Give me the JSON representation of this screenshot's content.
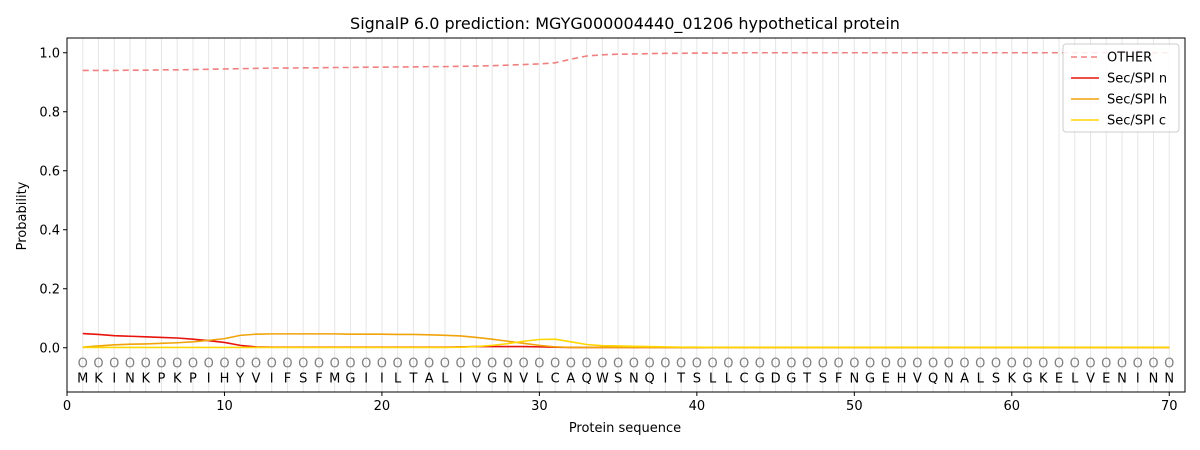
{
  "chart_data": {
    "type": "line",
    "title": "SignalP 6.0 prediction: MGYG000004440_01206 hypothetical protein",
    "xlabel": "Protein sequence",
    "ylabel": "Probability",
    "xlim": [
      0,
      71
    ],
    "ylim": [
      -0.15,
      1.05
    ],
    "xticks": [
      0,
      10,
      20,
      30,
      40,
      50,
      60,
      70
    ],
    "yticks": [
      0.0,
      0.2,
      0.4,
      0.6,
      0.8,
      1.0
    ],
    "ytick_labels": [
      "0.0",
      "0.2",
      "0.4",
      "0.6",
      "0.8",
      "1.0"
    ],
    "grid": "vertical",
    "legend_position": "top-right",
    "sequence": "MKINKPKPIHYVIFSFMGIILTALIVGNVLCAQWSNQITSLLCGDGTSFNGEHVQNALSKGKELVENINN",
    "cleavage_marker": "O",
    "x": [
      1,
      2,
      3,
      4,
      5,
      6,
      7,
      8,
      9,
      10,
      11,
      12,
      13,
      14,
      15,
      16,
      17,
      18,
      19,
      20,
      21,
      22,
      23,
      24,
      25,
      26,
      27,
      28,
      29,
      30,
      31,
      32,
      33,
      34,
      35,
      36,
      37,
      38,
      39,
      40,
      41,
      42,
      43,
      44,
      45,
      46,
      47,
      48,
      49,
      50,
      51,
      52,
      53,
      54,
      55,
      56,
      57,
      58,
      59,
      60,
      61,
      62,
      63,
      64,
      65,
      66,
      67,
      68,
      69,
      70
    ],
    "series": [
      {
        "name": "OTHER",
        "color": "#f08080",
        "dash": true,
        "values": [
          0.94,
          0.94,
          0.94,
          0.941,
          0.941,
          0.942,
          0.942,
          0.943,
          0.944,
          0.945,
          0.946,
          0.947,
          0.948,
          0.948,
          0.949,
          0.949,
          0.95,
          0.95,
          0.951,
          0.951,
          0.952,
          0.952,
          0.953,
          0.953,
          0.954,
          0.955,
          0.956,
          0.958,
          0.96,
          0.962,
          0.966,
          0.978,
          0.989,
          0.993,
          0.995,
          0.996,
          0.997,
          0.998,
          0.998,
          0.999,
          0.999,
          0.999,
          1.0,
          1.0,
          1.0,
          1.0,
          1.0,
          1.0,
          1.0,
          1.0,
          1.0,
          1.0,
          1.0,
          1.0,
          1.0,
          1.0,
          1.0,
          1.0,
          1.0,
          1.0,
          1.0,
          1.0,
          1.0,
          1.0,
          1.0,
          1.0,
          1.0,
          1.0,
          1.0,
          1.0
        ]
      },
      {
        "name": "Sec/SPI n",
        "color": "#e8140c",
        "dash": false,
        "values": [
          0.048,
          0.045,
          0.041,
          0.039,
          0.037,
          0.035,
          0.033,
          0.029,
          0.024,
          0.018,
          0.008,
          0.003,
          0.002,
          0.002,
          0.002,
          0.002,
          0.002,
          0.002,
          0.002,
          0.002,
          0.002,
          0.002,
          0.002,
          0.002,
          0.003,
          0.004,
          0.004,
          0.004,
          0.004,
          0.003,
          0.002,
          0.001,
          0.001,
          0.001,
          0.001,
          0.001,
          0.001,
          0.001,
          0.001,
          0.001,
          0.001,
          0.001,
          0.001,
          0.001,
          0.001,
          0.001,
          0.001,
          0.001,
          0.001,
          0.001,
          0.001,
          0.001,
          0.001,
          0.001,
          0.001,
          0.001,
          0.001,
          0.001,
          0.001,
          0.001,
          0.001,
          0.001,
          0.001,
          0.001,
          0.001,
          0.001,
          0.001,
          0.001,
          0.001,
          0.001
        ]
      },
      {
        "name": "Sec/SPI h",
        "color": "#f0a30a",
        "dash": false,
        "values": [
          0.002,
          0.006,
          0.01,
          0.012,
          0.013,
          0.015,
          0.017,
          0.02,
          0.025,
          0.031,
          0.042,
          0.046,
          0.047,
          0.047,
          0.047,
          0.047,
          0.047,
          0.046,
          0.046,
          0.046,
          0.045,
          0.045,
          0.044,
          0.042,
          0.04,
          0.035,
          0.029,
          0.022,
          0.015,
          0.008,
          0.003,
          0.001,
          0.001,
          0.001,
          0.001,
          0.001,
          0.001,
          0.001,
          0.001,
          0.001,
          0.001,
          0.001,
          0.001,
          0.001,
          0.001,
          0.001,
          0.001,
          0.001,
          0.001,
          0.001,
          0.001,
          0.001,
          0.001,
          0.001,
          0.001,
          0.001,
          0.001,
          0.001,
          0.001,
          0.001,
          0.001,
          0.001,
          0.001,
          0.001,
          0.001,
          0.001,
          0.001,
          0.001,
          0.001,
          0.001
        ]
      },
      {
        "name": "Sec/SPI c",
        "color": "#ffd700",
        "dash": false,
        "values": [
          0.001,
          0.001,
          0.001,
          0.001,
          0.001,
          0.001,
          0.001,
          0.001,
          0.001,
          0.001,
          0.001,
          0.001,
          0.001,
          0.001,
          0.001,
          0.001,
          0.001,
          0.001,
          0.001,
          0.001,
          0.001,
          0.001,
          0.001,
          0.001,
          0.002,
          0.004,
          0.008,
          0.014,
          0.022,
          0.028,
          0.029,
          0.02,
          0.011,
          0.007,
          0.006,
          0.005,
          0.004,
          0.003,
          0.002,
          0.002,
          0.001,
          0.001,
          0.001,
          0.001,
          0.001,
          0.001,
          0.001,
          0.001,
          0.001,
          0.001,
          0.001,
          0.001,
          0.001,
          0.001,
          0.001,
          0.001,
          0.001,
          0.001,
          0.001,
          0.001,
          0.001,
          0.001,
          0.001,
          0.001,
          0.001,
          0.001,
          0.001,
          0.001,
          0.001,
          0.001
        ]
      }
    ]
  }
}
